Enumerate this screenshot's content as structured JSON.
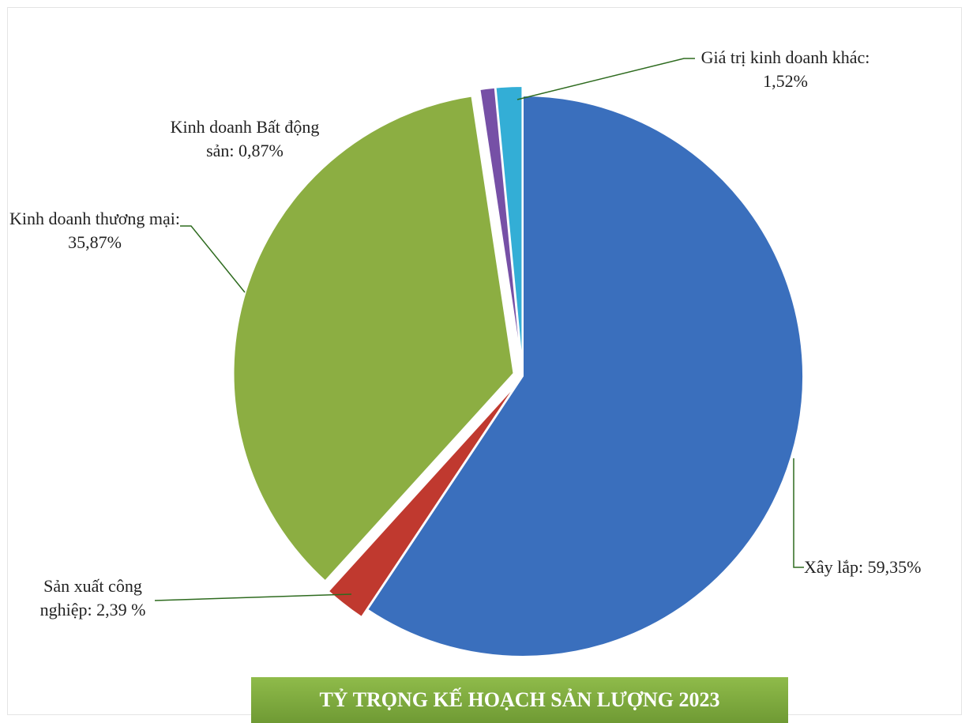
{
  "chart_data": {
    "type": "pie",
    "title": "TỶ TRỌNG KẾ HOẠCH SẢN LƯỢNG 2023",
    "values": [
      59.35,
      2.39,
      35.87,
      0.87,
      1.52
    ],
    "value_labels": [
      "Xây lắp: 59,35%",
      "Sản xuất công nghiệp: 2,39 %",
      "Kinh doanh thương mại: 35,87%",
      "Kinh doanh Bất động sản: 0,87%",
      "Giá trị kinh doanh khác: 1,52%"
    ],
    "colors": [
      "#3a6fbd",
      "#c0392f",
      "#8cae42",
      "#7650a6",
      "#33aed6"
    ]
  }
}
